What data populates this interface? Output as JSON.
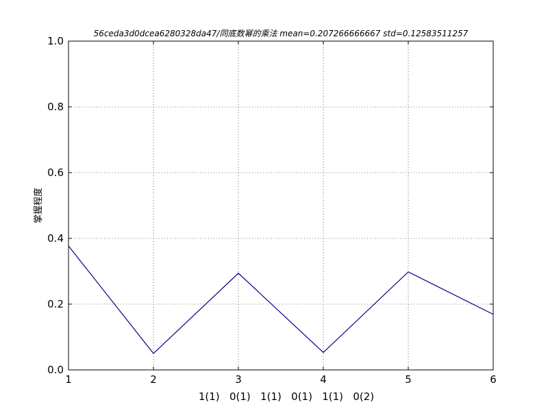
{
  "chart_data": {
    "type": "line",
    "title": "56ceda3d0dcea6280328da47/同底数幂的乘法 mean=0.207266666667 std=0.12583511257",
    "ylabel": "掌握程度",
    "xlabel": "1(1)   0(1)   1(1)   0(1)   1(1)   0(2)",
    "x": [
      1,
      2,
      3,
      4,
      5,
      6
    ],
    "series": [
      {
        "values": [
          0.377,
          0.05,
          0.294,
          0.053,
          0.298,
          0.169
        ],
        "color": "#00008b"
      }
    ],
    "xlim": [
      1,
      6
    ],
    "ylim": [
      0.0,
      1.0
    ],
    "xticks": [
      "1",
      "2",
      "3",
      "4",
      "5",
      "6"
    ],
    "yticks": [
      "0.0",
      "0.2",
      "0.4",
      "0.6",
      "0.8",
      "1.0"
    ],
    "grid": true
  }
}
